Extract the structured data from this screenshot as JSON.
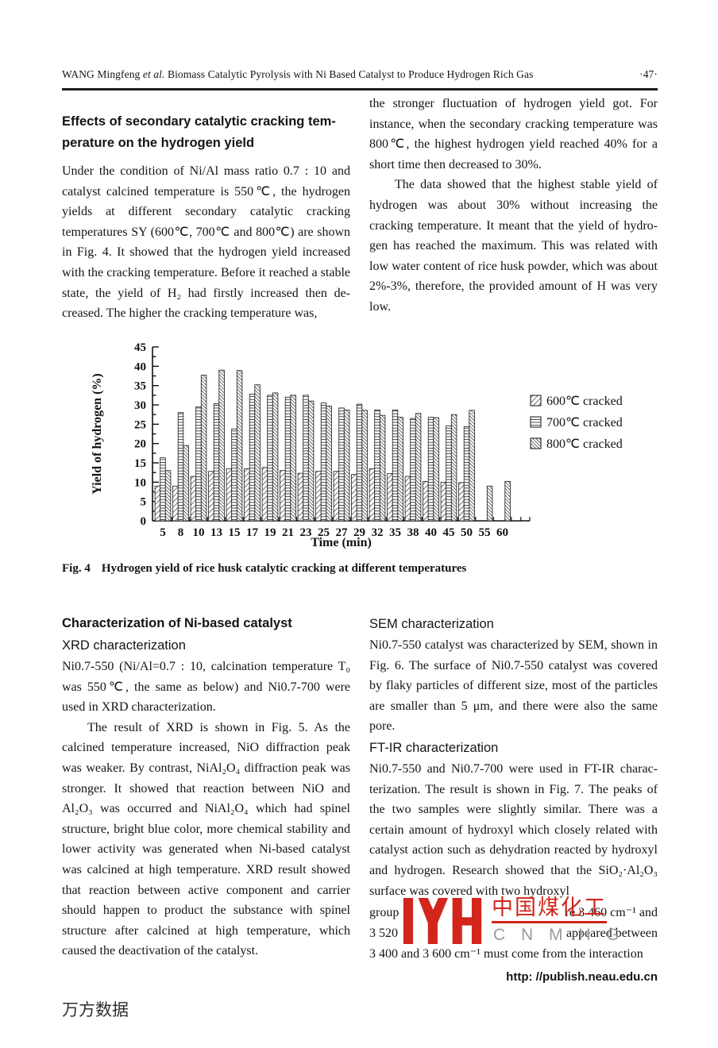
{
  "header": {
    "author_prefix": "WANG Mingfeng ",
    "etal": "et al.",
    "title_rest": " Biomass Catalytic Pyrolysis with Ni Based Catalyst to Produce Hydrogen Rich Gas",
    "page_number": "·47·"
  },
  "section1": {
    "heading_line1": "Effects of secondary catalytic cracking tem-",
    "heading_line2": "perature on the hydrogen yield",
    "left_paragraph": "Under the condition of Ni/Al mass ratio 0.7 : 10 and catalyst calcined temperature is 550℃, the hydrogen yields at different secondary catalytic cracking temperatures SY (600℃, 700℃ and 800℃) are shown in Fig. 4. It showed that the hydrogen yield increased with the cracking temperature. Before it reached a stable state, the yield of H₂ had firstly increased then de-creased. The higher the cracking temperature was,",
    "right_paragraph1": "the stronger fluctuation of hydrogen yield got. For instance, when the secondary cracking temperature was 800℃, the highest hydrogen yield reached 40% for a short time then decreased to 30%.",
    "right_paragraph2": "The data showed that the highest stable yield of hydrogen was about 30% without increasing the cracking temperature. It meant that the yield of hydro-gen has reached the maximum. This was related with low water content of rice husk powder, which was about 2%-3%, therefore, the provided amount of H was very low."
  },
  "figure": {
    "caption_label": "Fig. 4",
    "caption_text": "Hydrogen yield of rice husk catalytic cracking at different temperatures"
  },
  "chart_data": {
    "type": "bar",
    "title": "",
    "xlabel": "Time (min)",
    "ylabel": "Yield of hydrogen (%)",
    "ylim": [
      0,
      45
    ],
    "ytick_step": 5,
    "grid": false,
    "legend_position": "right",
    "categories": [
      "5",
      "8",
      "10",
      "13",
      "15",
      "17",
      "19",
      "21",
      "23",
      "25",
      "27",
      "29",
      "32",
      "35",
      "38",
      "40",
      "45",
      "50",
      "55",
      "60"
    ],
    "series": [
      {
        "name": "600℃ cracked",
        "pattern": "diagonal",
        "values": [
          9,
          9,
          11.5,
          12.8,
          13.5,
          13.5,
          13.8,
          13,
          12.3,
          12.8,
          12.8,
          12,
          13.5,
          12.2,
          11.5,
          10.2,
          10,
          9.9,
          null,
          null
        ]
      },
      {
        "name": "700℃ cracked",
        "pattern": "horizontal",
        "values": [
          16.3,
          28,
          29.5,
          30.3,
          23.8,
          32.8,
          32.5,
          32,
          32.5,
          30.5,
          29.2,
          30.2,
          28.7,
          28.7,
          26.5,
          26.8,
          24.6,
          24.4,
          null,
          null
        ]
      },
      {
        "name": "800℃ cracked",
        "pattern": "diagonal-dense",
        "values": [
          13,
          19.5,
          37.7,
          39,
          38.9,
          35.2,
          33.1,
          32.5,
          31,
          29.7,
          28.7,
          28.6,
          27.3,
          26.8,
          27.8,
          26.7,
          27.5,
          28.6,
          9,
          10.2
        ]
      }
    ]
  },
  "section2": {
    "left_heading": "Characterization of Ni-based catalyst",
    "left_subheading": "XRD characterization",
    "left_paragraph1": "Ni0.7-550 (Ni/Al=0.7 : 10, calcination temperature T₀ was 550℃, the same as below) and Ni0.7-700 were used in XRD characterization.",
    "left_paragraph2": "The result of XRD is shown in Fig. 5. As the calcined temperature increased, NiO diffraction peak was weaker. By contrast, NiAl₂O₄ diffraction peak was stronger. It showed that reaction between NiO and Al₂O₃ was occurred and NiAl₂O₄ which had spinel structure, bright blue color, more chemical stability and lower activity was generated when Ni-based catalyst was calcined at high temperature. XRD result showed that reaction between active component and carrier should happen to product the substance with spinel structure after calcined at high temperature, which caused the deactivation of the catalyst.",
    "right_subheading1": "SEM characterization",
    "right_paragraph1": "Ni0.7-550 catalyst was characterized by SEM, shown in Fig. 6. The surface of Ni0.7-550 catalyst was covered by flaky particles of different size, most of the particles are smaller than 5 μm, and there were also the same pore.",
    "right_subheading2": "FT-IR characterization",
    "right_paragraph2": "Ni0.7-550 and Ni0.7-700 were used in FT-IR charac-terization. The result is shown in Fig. 7. The peaks of the two samples were slightly similar. There was a certain amount of hydroxyl which closely related with catalyst action such as dehydration reacted by hydroxyl and hydrogen. Research showed that the SiO₂·Al₂O₃ surface was covered with two hydroxyl",
    "fragment_line1_left": "group",
    "fragment_line1_right": "re 3 460 cm⁻¹ and",
    "fragment_line2_left": "3 520",
    "fragment_line2_right": "appeared between",
    "fragment_line3": "3 400 and 3 600 cm⁻¹ must come from the interaction"
  },
  "watermark": {
    "chinese": "中国煤化工",
    "latin": "C N M H G",
    "red": "#d2251c",
    "gray": "#9b9b9b"
  },
  "footer": {
    "url": "http: //publish.neau.edu.cn",
    "wanfang_label": "万方数据"
  }
}
